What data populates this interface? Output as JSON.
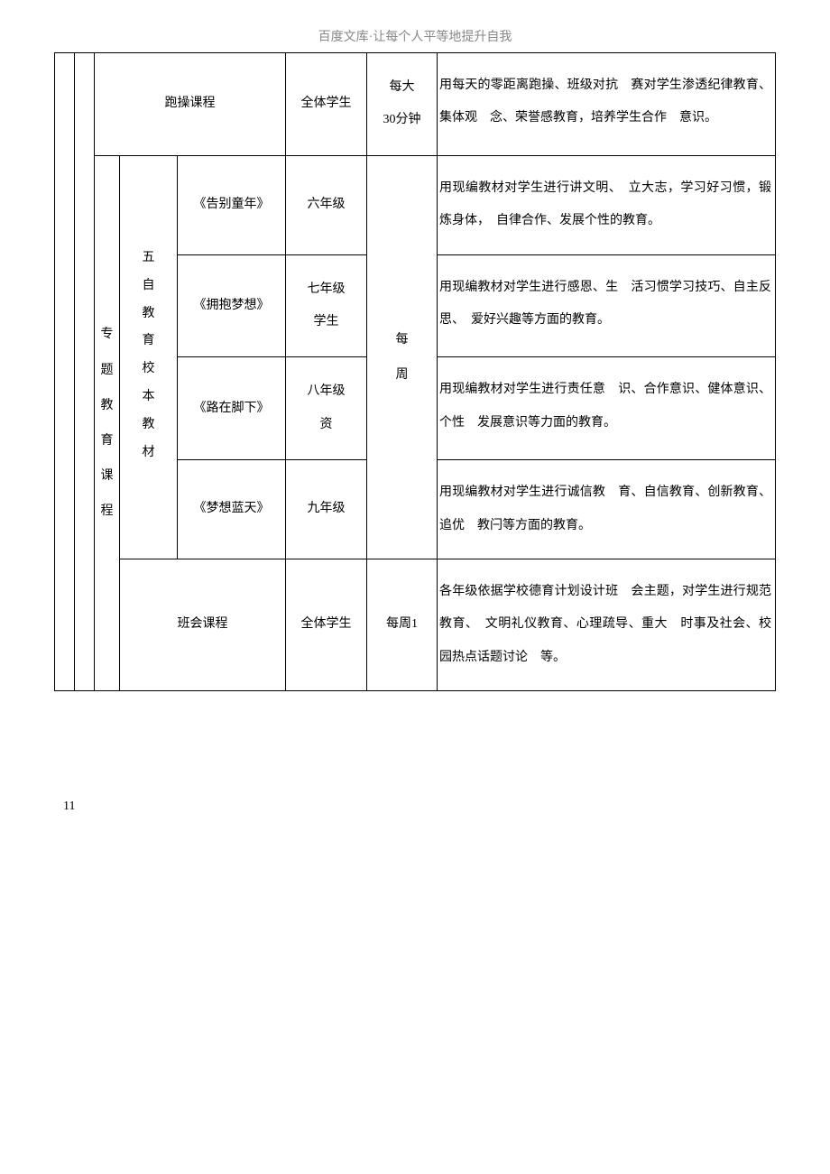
{
  "header": "百度文库·让每个人平等地提升自我",
  "footer": "11",
  "rows": {
    "r1": {
      "course": "跑操课程",
      "target": "全体学生",
      "freq": "每大\n30分钟",
      "desc": "用每天的零距离跑操、班级对抗　赛对学生渗透纪律教育、集体观　念、荣誉感教育，培养学生合作　意识。"
    },
    "section": {
      "vert": "专题教育课程",
      "group": "五自教育校本教材",
      "r2a": {
        "book": "《告别童年》",
        "target": "六年级",
        "desc": "用现编教材对学生进行讲文明、　立大志，学习好习惯，锻炼身体，　自律合作、发展个性的教育。"
      },
      "r2b": {
        "book": "《拥抱梦想》",
        "target": "七年级\n学生",
        "desc": "用现编教材对学生进行感恩、生　活习惯学习技巧、自主反思、　爱好兴趣等方面的教育。"
      },
      "freq_mid": "每周",
      "r2c": {
        "book": "《路在脚下》",
        "target": "八年级\n资",
        "desc": "用现编教材对学生进行责任意　识、合作意识、健体意识、个性　发展意识等力面的教育。"
      },
      "r2d": {
        "book": "《梦想蓝天》",
        "target": "九年级",
        "desc": "用现编教材对学生进行诚信教　育、自信教育、创新教育、追优　教闩等方面的教育。"
      },
      "r3": {
        "course": "班会课程",
        "target": "全体学生",
        "freq": "每周1",
        "desc": "各年级依据学校德育计划设计班　会主题，对学生进行规范教育、　文明礼仪教育、心理疏导、重大　时事及社会、校园热点话题讨论　等。"
      }
    }
  }
}
